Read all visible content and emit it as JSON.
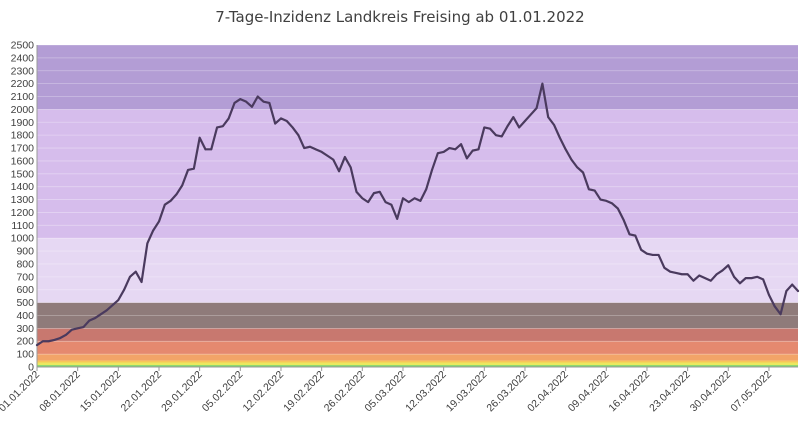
{
  "chart_data": {
    "type": "line",
    "title": "7-Tage-Inzidenz Landkreis Freising ab 01.01.2022",
    "xlabel": "",
    "ylabel": "",
    "ylim": [
      0,
      2500
    ],
    "y_ticks": [
      0,
      100,
      200,
      300,
      400,
      500,
      600,
      700,
      800,
      900,
      1000,
      1100,
      1200,
      1300,
      1400,
      1500,
      1600,
      1700,
      1800,
      1900,
      2000,
      2100,
      2200,
      2300,
      2400,
      2500
    ],
    "x_tick_labels": [
      "01.01.2022",
      "08.01.2022",
      "15.01.2022",
      "22.01.2022",
      "29.01.2022",
      "05.02.2022",
      "12.02.2022",
      "19.02.2022",
      "26.02.2022",
      "05.03.2022",
      "12.03.2022",
      "19.03.2022",
      "26.03.2022",
      "02.04.2022",
      "09.04.2022",
      "16.04.2022",
      "23.04.2022",
      "30.04.2022",
      "07.05.2022"
    ],
    "x_start_date": "01.01.2022",
    "grid": true,
    "legend": "none",
    "background_bands": [
      {
        "from": 0,
        "to": 15,
        "color": "#7fd46a"
      },
      {
        "from": 15,
        "to": 35,
        "color": "#ebe85e"
      },
      {
        "from": 35,
        "to": 50,
        "color": "#f7c65a"
      },
      {
        "from": 50,
        "to": 100,
        "color": "#f2a468"
      },
      {
        "from": 100,
        "to": 200,
        "color": "#e5896f"
      },
      {
        "from": 200,
        "to": 300,
        "color": "#c8786f"
      },
      {
        "from": 300,
        "to": 500,
        "color": "#8f7b7a"
      },
      {
        "from": 500,
        "to": 1000,
        "color": "#e6d8f3"
      },
      {
        "from": 1000,
        "to": 2000,
        "color": "#d6bdec"
      },
      {
        "from": 2000,
        "to": 2500,
        "color": "#b39dd5"
      }
    ],
    "series": [
      {
        "name": "",
        "color": "#4a3a5e",
        "values": [
          170,
          200,
          200,
          210,
          225,
          250,
          290,
          300,
          310,
          360,
          380,
          410,
          440,
          480,
          520,
          600,
          700,
          740,
          660,
          960,
          1060,
          1130,
          1260,
          1290,
          1340,
          1410,
          1530,
          1540,
          1780,
          1690,
          1690,
          1860,
          1870,
          1930,
          2050,
          2080,
          2060,
          2020,
          2100,
          2060,
          2050,
          1890,
          1930,
          1910,
          1860,
          1800,
          1700,
          1710,
          1690,
          1670,
          1640,
          1610,
          1520,
          1630,
          1550,
          1360,
          1310,
          1280,
          1350,
          1360,
          1280,
          1260,
          1150,
          1310,
          1280,
          1310,
          1290,
          1380,
          1530,
          1660,
          1670,
          1700,
          1690,
          1730,
          1620,
          1680,
          1690,
          1860,
          1850,
          1800,
          1790,
          1870,
          1940,
          1860,
          1910,
          1960,
          2010,
          2200,
          1940,
          1880,
          1780,
          1690,
          1610,
          1550,
          1510,
          1380,
          1370,
          1300,
          1290,
          1270,
          1230,
          1140,
          1030,
          1020,
          910,
          880,
          870,
          870,
          770,
          740,
          730,
          720,
          720,
          670,
          710,
          690,
          670,
          720,
          750,
          790,
          700,
          650,
          690,
          690,
          700,
          680,
          560,
          470,
          410,
          590,
          640,
          590
        ]
      }
    ]
  }
}
